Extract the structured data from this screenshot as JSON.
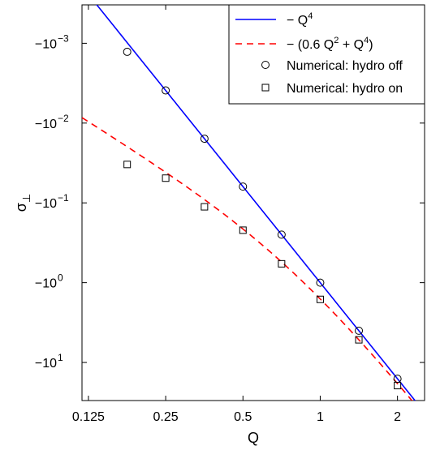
{
  "chart_data": {
    "type": "line",
    "xlabel": "Q",
    "ylabel": "σ",
    "ylabel_subscript": "⊥",
    "x_scale": "log",
    "y_scale": "log-negative",
    "xlim": [
      0.118,
      2.55
    ],
    "ylim": [
      -0.00033,
      -30
    ],
    "x_ticks": [
      {
        "value": 0.125,
        "label": "0.125"
      },
      {
        "value": 0.25,
        "label": "0.25"
      },
      {
        "value": 0.5,
        "label": "0.5"
      },
      {
        "value": 1,
        "label": "1"
      },
      {
        "value": 2,
        "label": "2"
      }
    ],
    "y_ticks": [
      {
        "value": -0.001,
        "base": "−10",
        "exp": "−3"
      },
      {
        "value": -0.01,
        "base": "−10",
        "exp": "−2"
      },
      {
        "value": -0.1,
        "base": "−10",
        "exp": "−1"
      },
      {
        "value": -1,
        "base": "−10",
        "exp": "0"
      },
      {
        "value": -10,
        "base": "−10",
        "exp": "1"
      }
    ],
    "legend": {
      "placement": "top-right",
      "entries": [
        {
          "label_pre": "− Q",
          "sup1": "4",
          "label_mid": "",
          "sup2": "",
          "label_post": "",
          "marker": "line",
          "color": "#0000ff"
        },
        {
          "label_pre": "− (0.6 Q",
          "sup1": "2",
          "label_mid": " + Q",
          "sup2": "4",
          "label_post": ")",
          "marker": "dashed",
          "color": "#ff0000"
        },
        {
          "label_pre": "Numerical: hydro off",
          "sup1": "",
          "label_mid": "",
          "sup2": "",
          "label_post": "",
          "marker": "circle",
          "color": "#000000"
        },
        {
          "label_pre": "Numerical: hydro on",
          "sup1": "",
          "label_mid": "",
          "sup2": "",
          "label_post": "",
          "marker": "square",
          "color": "#000000"
        }
      ]
    },
    "series": [
      {
        "formula": "-Q^4",
        "style": "solid",
        "color": "#0000ff"
      },
      {
        "formula": "-(0.6 Q^2 + Q^4)",
        "style": "dashed",
        "color": "#ff0000"
      },
      {
        "name": "Numerical: hydro off",
        "marker": "circle",
        "x": [
          0.177,
          0.25,
          0.354,
          0.5,
          0.707,
          1.0,
          1.414,
          2.0
        ],
        "y": [
          -0.00128,
          -0.0039,
          -0.0157,
          -0.0625,
          -0.25,
          -1.0,
          -4.0,
          -16.0
        ]
      },
      {
        "name": "Numerical: hydro on",
        "marker": "square",
        "x": [
          0.177,
          0.25,
          0.354,
          0.5,
          0.707,
          1.0,
          1.414,
          2.0
        ],
        "y": [
          -0.033,
          -0.049,
          -0.112,
          -0.22,
          -0.58,
          -1.62,
          -5.2,
          -19.5
        ]
      }
    ]
  }
}
